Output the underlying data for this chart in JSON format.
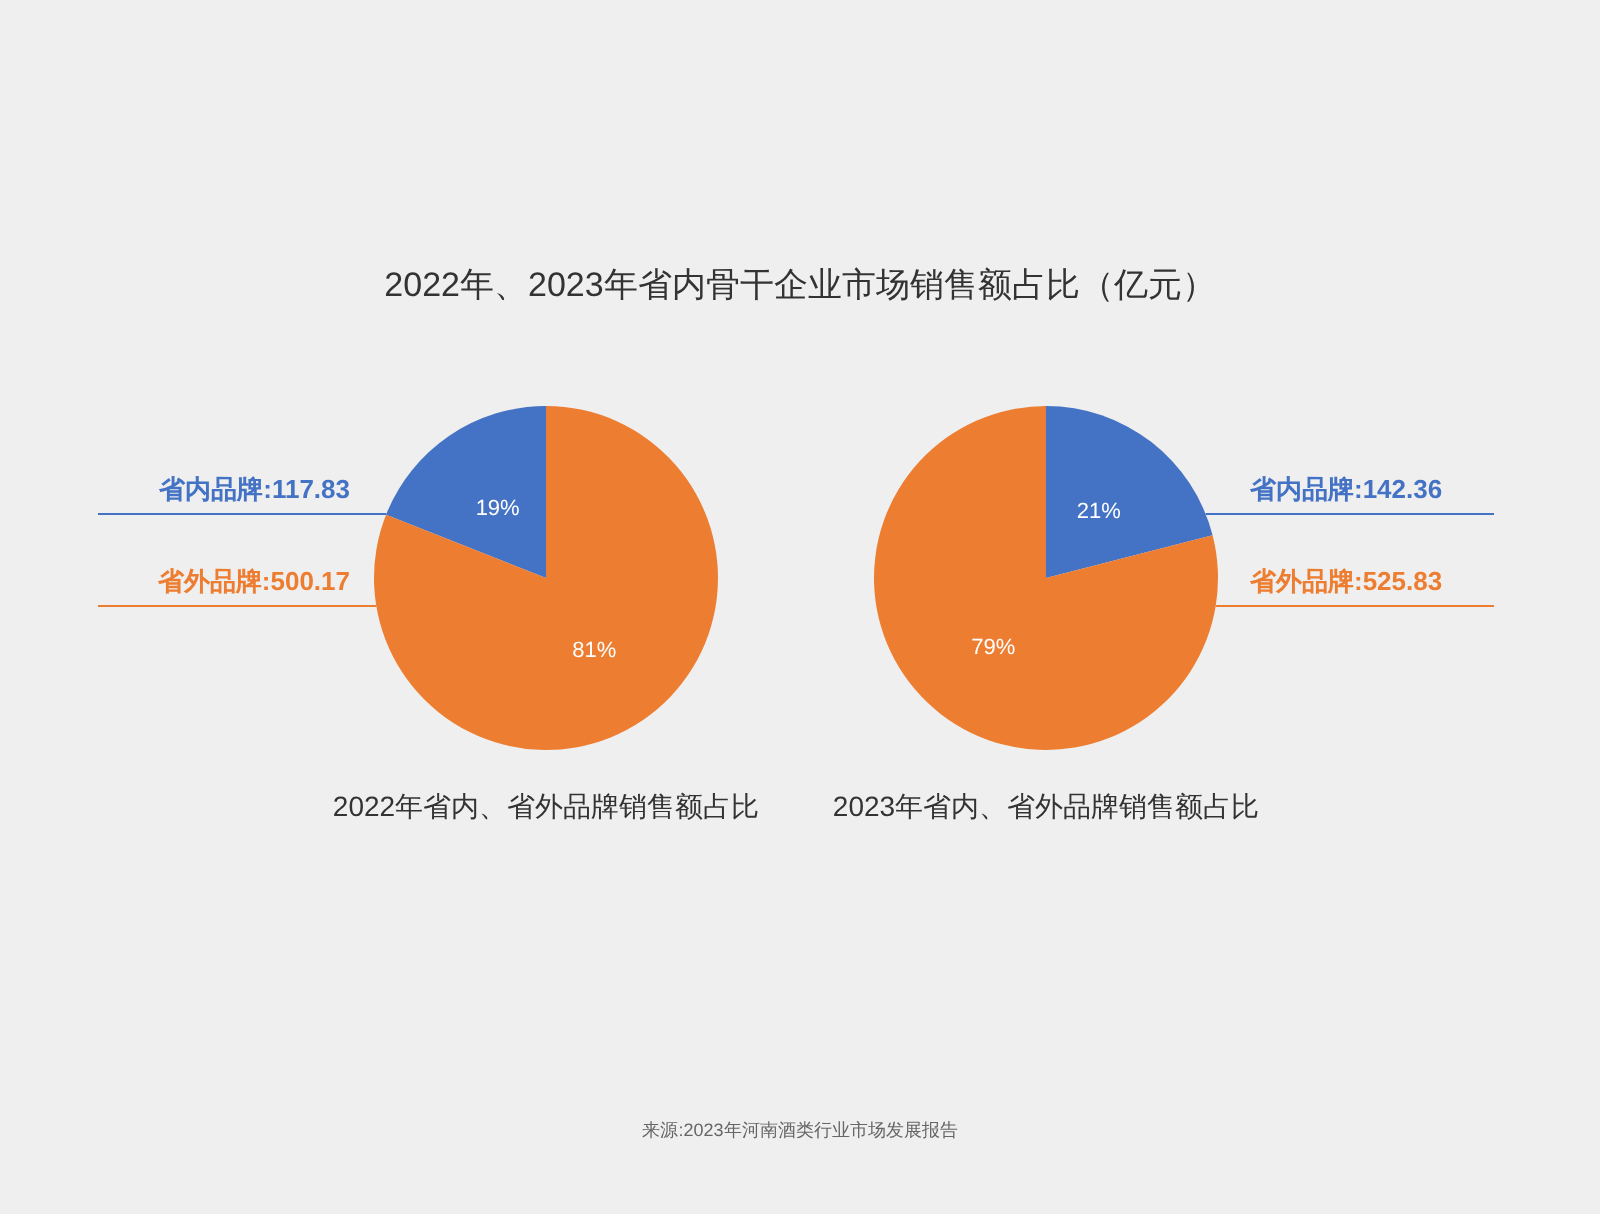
{
  "chart_data": [
    {
      "type": "pie",
      "title": "2022年、2023年省内骨干企业市场销售额占比（亿元）",
      "xlabel": "2022年省内、省外品牌销售额占比",
      "categories": [
        "省内品牌:117.83",
        "省外品牌:500.17"
      ],
      "values": [
        19,
        81
      ],
      "colors": [
        "#4472c4",
        "#ed7d31"
      ],
      "value_labels": [
        "19%",
        "81%"
      ]
    },
    {
      "type": "pie",
      "xlabel": "2023年省内、省外品牌销售额占比",
      "categories": [
        "省内品牌:142.36",
        "省外品牌:525.83"
      ],
      "values": [
        21,
        79
      ],
      "colors": [
        "#4472c4",
        "#ed7d31"
      ],
      "value_labels": [
        "21%",
        "79%"
      ],
      "annotations": [
        "来源:2023年河南酒类行业市场发展报告"
      ]
    }
  ]
}
